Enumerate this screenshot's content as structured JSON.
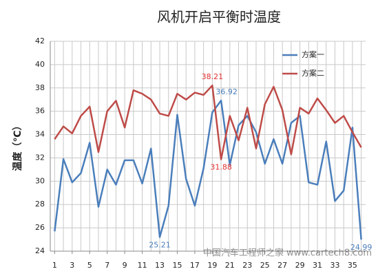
{
  "chart_data": {
    "type": "line",
    "title": "风机开启平衡时温度",
    "y_label": "温度（℃）",
    "x": [
      1,
      2,
      3,
      4,
      5,
      6,
      7,
      8,
      9,
      10,
      11,
      12,
      13,
      14,
      15,
      16,
      17,
      18,
      19,
      20,
      21,
      22,
      23,
      24,
      25,
      26,
      27,
      28,
      29,
      30,
      31,
      32,
      33,
      34,
      35,
      36
    ],
    "xlim": [
      0.5,
      36.5
    ],
    "xticks": [
      1,
      3,
      5,
      7,
      9,
      11,
      13,
      15,
      17,
      19,
      21,
      23,
      25,
      27,
      29,
      31,
      33,
      35
    ],
    "ylim": [
      24,
      42
    ],
    "yticks": [
      24,
      26,
      28,
      30,
      32,
      34,
      36,
      38,
      40,
      42
    ],
    "grid": true,
    "legend": "top-right",
    "series": [
      {
        "name": "方案一",
        "color": "#4a7ebb",
        "label_color": "#4a7ebb",
        "values": [
          25.7,
          31.9,
          29.9,
          30.7,
          33.3,
          27.8,
          31.0,
          29.7,
          31.8,
          31.8,
          29.8,
          32.8,
          25.21,
          27.9,
          35.7,
          30.2,
          27.9,
          31.1,
          35.9,
          36.92,
          31.4,
          34.8,
          35.6,
          34.2,
          31.5,
          33.6,
          31.5,
          35.0,
          35.6,
          29.9,
          29.7,
          33.4,
          28.3,
          29.2,
          34.6,
          24.99
        ],
        "value_labels": [
          null,
          null,
          null,
          null,
          null,
          null,
          null,
          null,
          null,
          null,
          null,
          null,
          "25.21",
          null,
          null,
          null,
          null,
          null,
          null,
          "36.92",
          null,
          null,
          null,
          null,
          null,
          null,
          null,
          null,
          null,
          null,
          null,
          null,
          null,
          null,
          null,
          "24.99"
        ]
      },
      {
        "name": "方案二",
        "color": "#be4b48",
        "label_color": "#e03030",
        "values": [
          33.6,
          34.7,
          34.1,
          35.6,
          36.4,
          32.5,
          36.0,
          36.9,
          34.6,
          37.8,
          37.5,
          37.0,
          35.8,
          35.6,
          37.5,
          37.0,
          37.6,
          37.4,
          38.21,
          31.88,
          35.6,
          33.5,
          36.3,
          32.8,
          36.6,
          38.1,
          36.1,
          32.3,
          36.3,
          35.8,
          37.1,
          36.1,
          35.0,
          35.6,
          34.2,
          32.9
        ],
        "value_labels": [
          null,
          null,
          null,
          null,
          null,
          null,
          null,
          null,
          null,
          null,
          null,
          null,
          null,
          null,
          null,
          null,
          null,
          null,
          "38.21",
          "31.88",
          null,
          null,
          null,
          null,
          null,
          null,
          null,
          null,
          null,
          null,
          null,
          null,
          null,
          null,
          null,
          null
        ]
      }
    ],
    "watermark": "中国汽车工程师之家 www.cartech8.com"
  }
}
